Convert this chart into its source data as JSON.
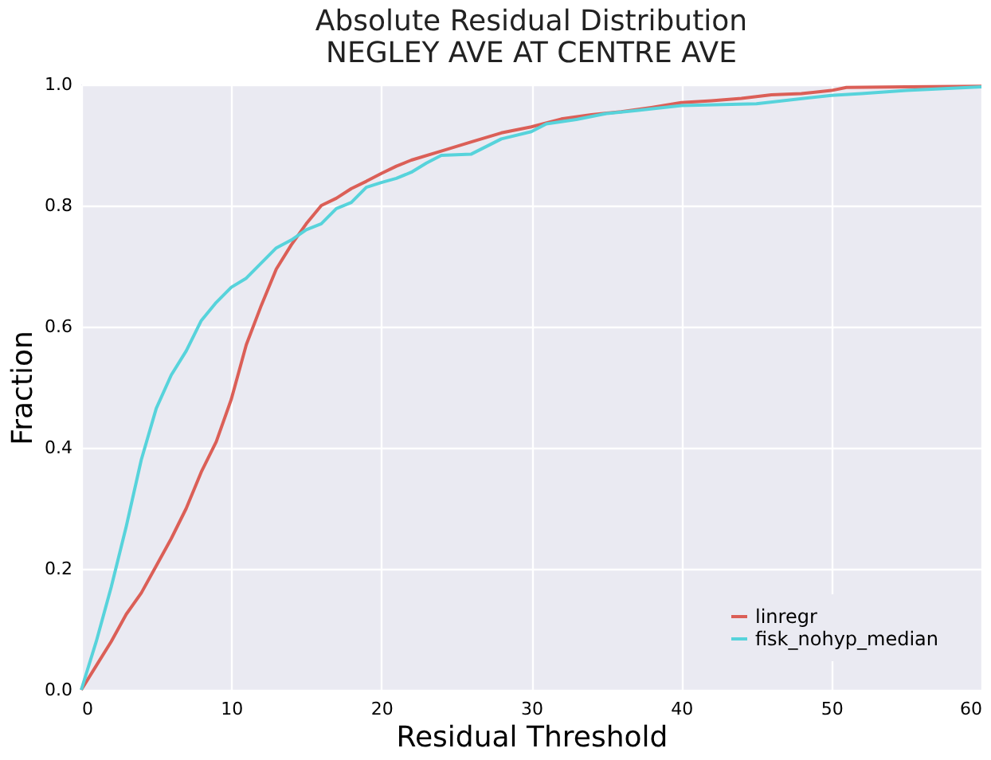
{
  "chart_data": {
    "type": "line",
    "title": [
      "Absolute Residual Distribution",
      "NEGLEY AVE AT CENTRE AVE"
    ],
    "xlabel": "Residual Threshold",
    "ylabel": "Fraction",
    "xlim": [
      0,
      60
    ],
    "xticks": [
      0,
      10,
      20,
      30,
      40,
      50,
      60
    ],
    "ylim": [
      0,
      1
    ],
    "yticks": [
      {
        "value": 0,
        "label": "0.0"
      },
      {
        "value": 0.2,
        "label": "0.2"
      },
      {
        "value": 0.4,
        "label": "0.4"
      },
      {
        "value": 0.6,
        "label": "0.6"
      },
      {
        "value": 0.8,
        "label": "0.8"
      },
      {
        "value": 1,
        "label": "1.0"
      }
    ],
    "grid": true,
    "legend": "bottom right",
    "marker": "none",
    "line_style": "solid",
    "series": [
      {
        "name": "linregr",
        "color": "#db5f57",
        "x": [
          0,
          1,
          2,
          3,
          4,
          5,
          6,
          7,
          8,
          9,
          10,
          11,
          12,
          13,
          14,
          15,
          16,
          17,
          18,
          19,
          20,
          21,
          22,
          24,
          26,
          28,
          30,
          32,
          34,
          36,
          38,
          40,
          42,
          44,
          46,
          48,
          50,
          51,
          55,
          60
        ],
        "values": [
          0,
          0.04,
          0.08,
          0.125,
          0.16,
          0.205,
          0.25,
          0.3,
          0.36,
          0.41,
          0.48,
          0.57,
          0.635,
          0.695,
          0.735,
          0.77,
          0.8,
          0.812,
          0.828,
          0.84,
          0.853,
          0.865,
          0.875,
          0.89,
          0.905,
          0.92,
          0.93,
          0.943,
          0.95,
          0.955,
          0.962,
          0.97,
          0.973,
          0.977,
          0.983,
          0.985,
          0.99,
          0.995,
          0.996,
          0.997
        ]
      },
      {
        "name": "fisk_nohyp_median",
        "color": "#57d3db",
        "x": [
          0,
          1,
          2,
          3,
          4,
          5,
          6,
          7,
          8,
          9,
          10,
          11,
          12,
          13,
          14,
          15,
          16,
          17,
          18,
          19,
          20,
          21,
          22,
          23,
          24,
          26,
          28,
          30,
          31,
          33,
          35,
          37,
          40,
          45,
          50,
          52,
          55,
          60
        ],
        "values": [
          0,
          0.08,
          0.17,
          0.27,
          0.38,
          0.465,
          0.52,
          0.56,
          0.61,
          0.64,
          0.665,
          0.68,
          0.705,
          0.73,
          0.743,
          0.76,
          0.77,
          0.795,
          0.805,
          0.83,
          0.838,
          0.845,
          0.855,
          0.87,
          0.883,
          0.885,
          0.91,
          0.922,
          0.935,
          0.942,
          0.952,
          0.957,
          0.965,
          0.968,
          0.982,
          0.985,
          0.99,
          0.996
        ]
      }
    ]
  }
}
